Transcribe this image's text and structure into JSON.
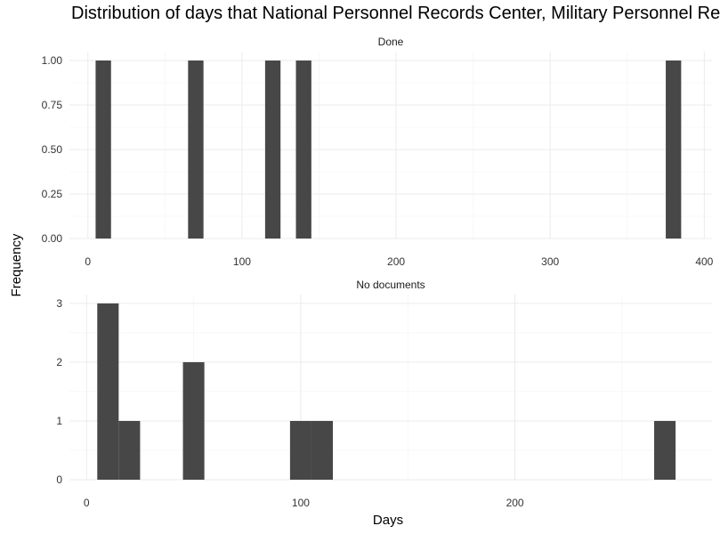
{
  "chart_data": {
    "type": "bar",
    "title": "Distribution of days that National Personnel Records Center, Military Personnel Re",
    "xlabel": "Days",
    "ylabel": "Frequency",
    "grid": true,
    "bar_color": "#474747",
    "facets": [
      {
        "label": "Done",
        "xlim": [
          -12,
          405
        ],
        "ylim": [
          0,
          1.05
        ],
        "x_ticks": [
          0,
          100,
          200,
          300,
          400
        ],
        "x_tick_labels": [
          "0",
          "100",
          "200",
          "300",
          "400"
        ],
        "y_ticks": [
          0,
          0.25,
          0.5,
          0.75,
          1
        ],
        "y_tick_labels": [
          "0.00",
          "0.25",
          "0.50",
          "0.75",
          "1.00"
        ],
        "bins": [
          {
            "x0": 5,
            "x1": 15,
            "count": 1
          },
          {
            "x0": 65,
            "x1": 75,
            "count": 1
          },
          {
            "x0": 115,
            "x1": 125,
            "count": 1
          },
          {
            "x0": 135,
            "x1": 145,
            "count": 1
          },
          {
            "x0": 375,
            "x1": 385,
            "count": 1
          }
        ]
      },
      {
        "label": "No documents",
        "xlim": [
          -8,
          292
        ],
        "ylim": [
          0,
          3.15
        ],
        "x_ticks": [
          0,
          100,
          200
        ],
        "x_tick_labels": [
          "0",
          "100",
          "200"
        ],
        "y_ticks": [
          0,
          1,
          2,
          3
        ],
        "y_tick_labels": [
          "0",
          "1",
          "2",
          "3"
        ],
        "bins": [
          {
            "x0": 5,
            "x1": 15,
            "count": 3
          },
          {
            "x0": 15,
            "x1": 25,
            "count": 1
          },
          {
            "x0": 45,
            "x1": 55,
            "count": 2
          },
          {
            "x0": 95,
            "x1": 105,
            "count": 1
          },
          {
            "x0": 105,
            "x1": 115,
            "count": 1
          },
          {
            "x0": 265,
            "x1": 275,
            "count": 1
          }
        ]
      }
    ]
  }
}
